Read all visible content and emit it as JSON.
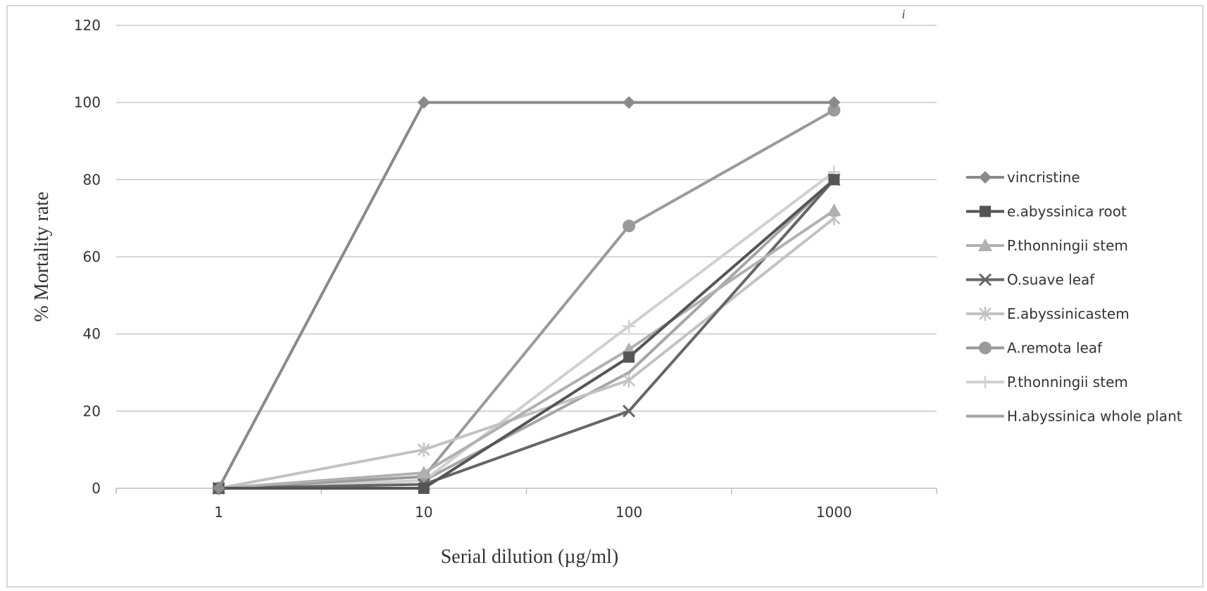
{
  "chart_data": {
    "type": "line",
    "title": "",
    "xlabel": "Serial dilution (µg/ml)",
    "ylabel": "% Mortality rate",
    "x_scale": "log",
    "x": [
      1,
      10,
      100,
      1000
    ],
    "x_tick_labels": [
      "1",
      "10",
      "100",
      "1000"
    ],
    "ylim": [
      0,
      120
    ],
    "y_ticks": [
      0,
      20,
      40,
      60,
      80,
      100,
      120
    ],
    "grid": "horizontal",
    "legend_position": "right",
    "corner_mark": "i",
    "series": [
      {
        "name": "vincristine",
        "values": [
          0,
          100,
          100,
          100
        ],
        "color": "#8a8a8a",
        "marker": "diamond"
      },
      {
        "name": "e.abyssinica root",
        "values": [
          0,
          0,
          34,
          80
        ],
        "color": "#555555",
        "marker": "square"
      },
      {
        "name": "P.thonningii stem",
        "values": [
          0,
          4,
          36,
          72
        ],
        "color": "#b0b0b0",
        "marker": "triangle"
      },
      {
        "name": "O.suave leaf",
        "values": [
          0,
          1,
          20,
          80
        ],
        "color": "#666666",
        "marker": "x"
      },
      {
        "name": "E.abyssinicastem",
        "values": [
          0,
          10,
          28,
          70
        ],
        "color": "#c2c2c2",
        "marker": "star"
      },
      {
        "name": "A.remota leaf",
        "values": [
          0,
          3,
          68,
          98
        ],
        "color": "#9a9a9a",
        "marker": "circle"
      },
      {
        "name": "P.thonningii stem",
        "values": [
          0,
          2,
          42,
          82
        ],
        "color": "#d0d0d0",
        "marker": "plus"
      },
      {
        "name": "H.abyssinica whole plant",
        "values": [
          0,
          2,
          30,
          80
        ],
        "color": "#a5a5a5",
        "marker": "none"
      }
    ]
  }
}
